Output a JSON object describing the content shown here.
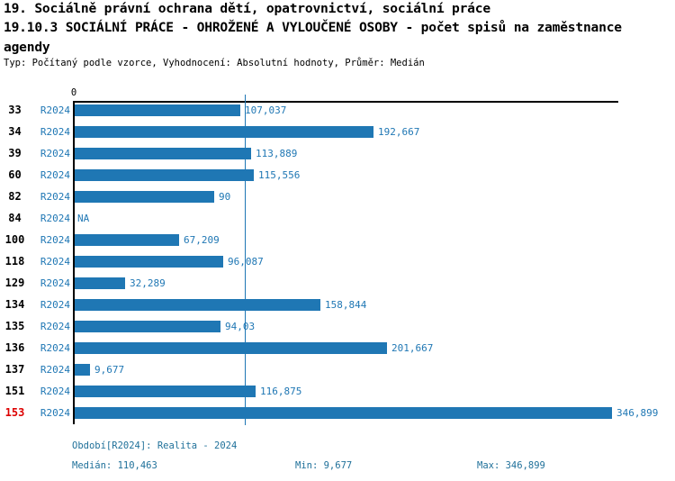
{
  "header": {
    "line1": "19. Sociálně právní ochrana dětí, opatrovnictví, sociální práce",
    "line2": "19.10.3 SOCIÁLNÍ PRÁCE - OHROŽENÉ A VYLOUČENÉ OSOBY - počet spisů na zaměstnance",
    "line3": "agendy",
    "meta": "Typ: Počítaný podle vzorce, Vyhodnocení: Absolutní hodnoty, Průměr: Medián"
  },
  "chart_data": {
    "type": "bar",
    "orientation": "horizontal",
    "title": "19.10.3 SOCIÁLNÍ PRÁCE - OHROŽENÉ A VYLOUČENÉ OSOBY - počet spisů na zaměstnance agendy",
    "x_axis": {
      "zero_label": "0",
      "min": 0,
      "max_value": 346.899,
      "gridlines": false
    },
    "median": {
      "value": 110.463,
      "label": "110,463"
    },
    "series_name": "R2024",
    "rows": [
      {
        "category": "33",
        "series": "R2024",
        "value": 107.037,
        "value_label": "107,037",
        "highlighted": false
      },
      {
        "category": "34",
        "series": "R2024",
        "value": 192.667,
        "value_label": "192,667",
        "highlighted": false
      },
      {
        "category": "39",
        "series": "R2024",
        "value": 113.889,
        "value_label": "113,889",
        "highlighted": false
      },
      {
        "category": "60",
        "series": "R2024",
        "value": 115.556,
        "value_label": "115,556",
        "highlighted": false
      },
      {
        "category": "82",
        "series": "R2024",
        "value": 90,
        "value_label": "90",
        "highlighted": false
      },
      {
        "category": "84",
        "series": "R2024",
        "value": null,
        "value_label": "NA",
        "highlighted": false
      },
      {
        "category": "100",
        "series": "R2024",
        "value": 67.209,
        "value_label": "67,209",
        "highlighted": false
      },
      {
        "category": "118",
        "series": "R2024",
        "value": 96.087,
        "value_label": "96,087",
        "highlighted": false
      },
      {
        "category": "129",
        "series": "R2024",
        "value": 32.289,
        "value_label": "32,289",
        "highlighted": false
      },
      {
        "category": "134",
        "series": "R2024",
        "value": 158.844,
        "value_label": "158,844",
        "highlighted": false
      },
      {
        "category": "135",
        "series": "R2024",
        "value": 94.03,
        "value_label": "94,03",
        "highlighted": false
      },
      {
        "category": "136",
        "series": "R2024",
        "value": 201.667,
        "value_label": "201,667",
        "highlighted": false
      },
      {
        "category": "137",
        "series": "R2024",
        "value": 9.677,
        "value_label": "9,677",
        "highlighted": false
      },
      {
        "category": "151",
        "series": "R2024",
        "value": 116.875,
        "value_label": "116,875",
        "highlighted": false
      },
      {
        "category": "153",
        "series": "R2024",
        "value": 346.899,
        "value_label": "346,899",
        "highlighted": true
      }
    ]
  },
  "footer": {
    "period": "Období[R2024]: Realita - 2024",
    "median": "Medián: 110,463",
    "min": "Min: 9,677",
    "max": "Max: 346,899"
  },
  "colors": {
    "bar": "#1f77b4",
    "chart_text": "#1f77b4",
    "median_line": "#1f77b4",
    "highlight_red": "#dd0000",
    "footer_text": "#20719a",
    "axis": "#000000"
  }
}
